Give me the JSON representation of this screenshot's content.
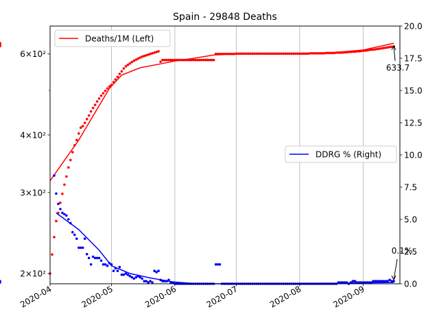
{
  "chart_data": {
    "type": "line",
    "title": "Spain - 29848 Deaths",
    "x_start": "2020-04-01",
    "x_end": "2020-09-19",
    "x_ticks": [
      "2020-04",
      "2020-05",
      "2020-06",
      "2020-07",
      "2020-08",
      "2020-09"
    ],
    "x_tick_dates": [
      "2020-04-01",
      "2020-05-01",
      "2020-06-01",
      "2020-07-01",
      "2020-08-01",
      "2020-09-01"
    ],
    "grid": "vertical",
    "left_axis": {
      "scale": "log",
      "ylim": [
        190,
        690
      ],
      "ticks": [
        200,
        300,
        400,
        600
      ],
      "tick_labels": [
        "2×10²",
        "3×10²",
        "4×10²",
        "6×10²"
      ]
    },
    "right_axis": {
      "scale": "linear",
      "ylim": [
        0,
        20
      ],
      "ticks": [
        0,
        2.5,
        5,
        7.5,
        10,
        12.5,
        15,
        17.5,
        20
      ],
      "tick_labels": [
        "0.0",
        "2.5",
        "5.0",
        "7.5",
        "10.0",
        "12.5",
        "15.0",
        "17.5",
        "20.0"
      ]
    },
    "series": [
      {
        "name": "Deaths/1M (Left)",
        "axis": "left",
        "color": "#ff0000",
        "legend_position": "upper-left",
        "x": [
          "2020-04-01",
          "2020-04-02",
          "2020-04-03",
          "2020-04-04",
          "2020-04-05",
          "2020-04-06",
          "2020-04-07",
          "2020-04-08",
          "2020-04-09",
          "2020-04-10",
          "2020-04-11",
          "2020-04-12",
          "2020-04-13",
          "2020-04-14",
          "2020-04-15",
          "2020-04-16",
          "2020-04-17",
          "2020-04-18",
          "2020-04-19",
          "2020-04-20",
          "2020-04-21",
          "2020-04-22",
          "2020-04-23",
          "2020-04-24",
          "2020-04-25",
          "2020-04-26",
          "2020-04-27",
          "2020-04-28",
          "2020-04-29",
          "2020-04-30",
          "2020-05-01",
          "2020-05-02",
          "2020-05-03",
          "2020-05-04",
          "2020-05-05",
          "2020-05-06",
          "2020-05-07",
          "2020-05-08",
          "2020-05-09",
          "2020-05-10",
          "2020-05-11",
          "2020-05-12",
          "2020-05-13",
          "2020-05-14",
          "2020-05-15",
          "2020-05-16",
          "2020-05-17",
          "2020-05-18",
          "2020-05-19",
          "2020-05-20",
          "2020-05-21",
          "2020-05-22",
          "2020-05-23",
          "2020-05-24",
          "2020-05-25",
          "2020-05-26",
          "2020-05-27",
          "2020-05-28",
          "2020-05-29",
          "2020-05-30",
          "2020-05-31",
          "2020-06-01",
          "2020-06-02",
          "2020-06-03",
          "2020-06-04",
          "2020-06-05",
          "2020-06-06",
          "2020-06-07",
          "2020-06-08",
          "2020-06-09",
          "2020-06-10",
          "2020-06-11",
          "2020-06-12",
          "2020-06-13",
          "2020-06-14",
          "2020-06-15",
          "2020-06-16",
          "2020-06-17",
          "2020-06-18",
          "2020-06-19",
          "2020-06-20",
          "2020-06-21",
          "2020-06-22",
          "2020-06-23",
          "2020-06-24",
          "2020-06-25",
          "2020-06-26",
          "2020-06-27",
          "2020-06-28",
          "2020-06-29",
          "2020-06-30",
          "2020-07-01",
          "2020-07-02",
          "2020-07-03",
          "2020-07-04",
          "2020-07-05",
          "2020-07-06",
          "2020-07-07",
          "2020-07-08",
          "2020-07-09",
          "2020-07-10",
          "2020-07-11",
          "2020-07-12",
          "2020-07-13",
          "2020-07-14",
          "2020-07-15",
          "2020-07-16",
          "2020-07-17",
          "2020-07-18",
          "2020-07-19",
          "2020-07-20",
          "2020-07-21",
          "2020-07-22",
          "2020-07-23",
          "2020-07-24",
          "2020-07-25",
          "2020-07-26",
          "2020-07-27",
          "2020-07-28",
          "2020-07-29",
          "2020-07-30",
          "2020-07-31",
          "2020-08-01",
          "2020-08-02",
          "2020-08-03",
          "2020-08-04",
          "2020-08-05",
          "2020-08-06",
          "2020-08-07",
          "2020-08-08",
          "2020-08-09",
          "2020-08-10",
          "2020-08-11",
          "2020-08-12",
          "2020-08-13",
          "2020-08-14",
          "2020-08-15",
          "2020-08-16",
          "2020-08-17",
          "2020-08-18",
          "2020-08-19",
          "2020-08-20",
          "2020-08-21",
          "2020-08-22",
          "2020-08-23",
          "2020-08-24",
          "2020-08-25",
          "2020-08-26",
          "2020-08-27",
          "2020-08-28",
          "2020-08-29",
          "2020-08-30",
          "2020-08-31",
          "2020-09-01",
          "2020-09-02",
          "2020-09-03",
          "2020-09-04",
          "2020-09-05",
          "2020-09-06",
          "2020-09-07",
          "2020-09-08",
          "2020-09-09",
          "2020-09-10",
          "2020-09-11",
          "2020-09-12",
          "2020-09-13",
          "2020-09-14",
          "2020-09-15",
          "2020-09-16"
        ],
        "points": [
          200,
          220,
          240,
          260,
          271,
          285,
          298,
          312,
          325,
          340,
          353,
          367,
          380,
          390,
          403,
          415,
          418,
          425,
          433,
          441,
          450,
          458,
          465,
          473,
          480,
          487,
          493,
          499,
          505,
          510,
          514,
          521,
          528,
          535,
          543,
          550,
          558,
          564,
          568,
          572,
          576,
          580,
          583,
          586,
          589,
          592,
          594,
          596,
          598,
          600,
          602,
          604,
          606,
          608,
          577,
          582,
          582,
          582,
          582,
          582,
          582,
          582,
          582,
          582,
          582,
          582,
          582,
          582,
          582,
          582,
          582,
          582,
          582,
          582,
          582,
          582,
          582,
          582,
          582,
          582,
          582,
          600,
          600,
          600,
          600,
          600,
          600,
          600,
          600,
          600,
          600,
          601,
          601,
          601,
          601,
          601,
          601,
          601,
          601,
          601,
          601,
          601,
          601,
          601,
          601,
          601,
          601,
          601,
          601,
          601,
          601,
          601,
          601,
          601,
          601,
          601,
          601,
          601,
          601,
          601,
          601,
          601,
          601,
          601,
          601,
          601,
          601,
          602,
          602,
          602,
          602,
          602,
          602,
          602,
          602,
          603,
          603,
          603,
          603,
          603,
          604,
          604,
          604,
          604,
          605,
          605,
          606,
          606,
          607,
          607,
          608,
          608,
          609,
          610,
          610,
          611,
          612,
          613,
          613,
          614,
          615,
          616,
          617,
          618,
          619,
          620,
          621,
          622,
          623,
          624,
          625,
          627,
          629,
          631,
          633.7
        ],
        "trend": [
          {
            "x": "2020-04-01",
            "y": 318
          },
          {
            "x": "2020-04-15",
            "y": 390
          },
          {
            "x": "2020-04-30",
            "y": 505
          },
          {
            "x": "2020-05-06",
            "y": 540
          },
          {
            "x": "2020-05-15",
            "y": 560
          },
          {
            "x": "2020-05-25",
            "y": 571
          },
          {
            "x": "2020-05-31",
            "y": 578
          },
          {
            "x": "2020-06-10",
            "y": 587
          },
          {
            "x": "2020-06-20",
            "y": 597
          },
          {
            "x": "2020-06-30",
            "y": 600
          },
          {
            "x": "2020-07-31",
            "y": 601
          },
          {
            "x": "2020-08-15",
            "y": 603
          },
          {
            "x": "2020-09-01",
            "y": 612
          },
          {
            "x": "2020-09-16",
            "y": 633
          }
        ],
        "annotation": {
          "text": "633.7",
          "x": "2020-09-16",
          "y": 633.7
        }
      },
      {
        "name": "DDRG % (Right)",
        "axis": "right",
        "color": "#0000ff",
        "legend_position": "center-right",
        "x": [
          "2020-04-03",
          "2020-04-04",
          "2020-04-05",
          "2020-04-06",
          "2020-04-07",
          "2020-04-08",
          "2020-04-09",
          "2020-04-10",
          "2020-04-11",
          "2020-04-12",
          "2020-04-13",
          "2020-04-14",
          "2020-04-15",
          "2020-04-16",
          "2020-04-17",
          "2020-04-18",
          "2020-04-19",
          "2020-04-20",
          "2020-04-21",
          "2020-04-22",
          "2020-04-23",
          "2020-04-24",
          "2020-04-25",
          "2020-04-26",
          "2020-04-27",
          "2020-04-28",
          "2020-04-29",
          "2020-04-30",
          "2020-05-01",
          "2020-05-02",
          "2020-05-03",
          "2020-05-04",
          "2020-05-05",
          "2020-05-06",
          "2020-05-07",
          "2020-05-08",
          "2020-05-09",
          "2020-05-10",
          "2020-05-11",
          "2020-05-12",
          "2020-05-13",
          "2020-05-14",
          "2020-05-15",
          "2020-05-16",
          "2020-05-17",
          "2020-05-18",
          "2020-05-19",
          "2020-05-20",
          "2020-05-21",
          "2020-05-22",
          "2020-05-23",
          "2020-05-24",
          "2020-05-25",
          "2020-05-26",
          "2020-05-27",
          "2020-05-28",
          "2020-05-29",
          "2020-05-30",
          "2020-05-31",
          "2020-06-01",
          "2020-06-02",
          "2020-06-03",
          "2020-06-04",
          "2020-06-05",
          "2020-06-06",
          "2020-06-07",
          "2020-06-08",
          "2020-06-09",
          "2020-06-10",
          "2020-06-11",
          "2020-06-12",
          "2020-06-13",
          "2020-06-14",
          "2020-06-15",
          "2020-06-16",
          "2020-06-17",
          "2020-06-18",
          "2020-06-19",
          "2020-06-20",
          "2020-06-21",
          "2020-06-22",
          "2020-06-23",
          "2020-06-24",
          "2020-06-25",
          "2020-06-26",
          "2020-06-27",
          "2020-06-28",
          "2020-06-29",
          "2020-06-30",
          "2020-07-01",
          "2020-07-02",
          "2020-07-03",
          "2020-07-04",
          "2020-07-05",
          "2020-07-06",
          "2020-07-07",
          "2020-07-08",
          "2020-07-09",
          "2020-07-10",
          "2020-07-11",
          "2020-07-12",
          "2020-07-13",
          "2020-07-14",
          "2020-07-15",
          "2020-07-16",
          "2020-07-17",
          "2020-07-18",
          "2020-07-19",
          "2020-07-20",
          "2020-07-21",
          "2020-07-22",
          "2020-07-23",
          "2020-07-24",
          "2020-07-25",
          "2020-07-26",
          "2020-07-27",
          "2020-07-28",
          "2020-07-29",
          "2020-07-30",
          "2020-07-31",
          "2020-08-01",
          "2020-08-02",
          "2020-08-03",
          "2020-08-04",
          "2020-08-05",
          "2020-08-06",
          "2020-08-07",
          "2020-08-08",
          "2020-08-09",
          "2020-08-10",
          "2020-08-11",
          "2020-08-12",
          "2020-08-13",
          "2020-08-14",
          "2020-08-15",
          "2020-08-16",
          "2020-08-17",
          "2020-08-18",
          "2020-08-19",
          "2020-08-20",
          "2020-08-21",
          "2020-08-22",
          "2020-08-23",
          "2020-08-24",
          "2020-08-25",
          "2020-08-26",
          "2020-08-27",
          "2020-08-28",
          "2020-08-29",
          "2020-08-30",
          "2020-08-31",
          "2020-09-01",
          "2020-09-02",
          "2020-09-03",
          "2020-09-04",
          "2020-09-05",
          "2020-09-06",
          "2020-09-07",
          "2020-09-08",
          "2020-09-09",
          "2020-09-10",
          "2020-09-11",
          "2020-09-12",
          "2020-09-13",
          "2020-09-14",
          "2020-09-15",
          "2020-09-16"
        ],
        "points": [
          8.4,
          7.0,
          6.2,
          5.8,
          5.5,
          5.4,
          5.3,
          5.0,
          4.7,
          4.0,
          3.8,
          3.5,
          2.8,
          2.8,
          2.8,
          3.5,
          2.3,
          2.0,
          1.5,
          2.1,
          2.0,
          2.0,
          2.0,
          1.8,
          1.5,
          1.5,
          1.4,
          1.6,
          1.5,
          1.0,
          1.2,
          1.0,
          1.3,
          0.7,
          0.7,
          0.8,
          0.7,
          0.6,
          0.5,
          0.4,
          0.5,
          0.6,
          0.5,
          0.4,
          0.2,
          0.2,
          0.1,
          0.2,
          0.1,
          1.0,
          0.9,
          1.0,
          0.3,
          0.2,
          0.2,
          0.2,
          0.3,
          0.1,
          0.1,
          0.0,
          0.0,
          0.0,
          0.0,
          0.0,
          0.0,
          0.0,
          0.0,
          0.0,
          0.0,
          0.0,
          0.0,
          0.0,
          0.0,
          0.0,
          0.0,
          0.0,
          0.0,
          0.0,
          0.0,
          1.5,
          1.5,
          1.5,
          0.0,
          0.0,
          0.0,
          0.0,
          0.0,
          0.0,
          0.0,
          0.0,
          0.0,
          0.0,
          0.0,
          0.0,
          0.0,
          0.0,
          0.0,
          0.0,
          0.0,
          0.0,
          0.0,
          0.0,
          0.0,
          0.0,
          0.0,
          0.0,
          0.0,
          0.0,
          0.0,
          0.0,
          0.0,
          0.0,
          0.0,
          0.0,
          0.0,
          0.0,
          0.0,
          0.0,
          0.0,
          0.0,
          0.0,
          0.0,
          0.0,
          0.0,
          0.0,
          0.0,
          0.0,
          0.0,
          0.0,
          0.0,
          0.0,
          0.0,
          0.0,
          0.0,
          0.0,
          0.0,
          0.0,
          0.0,
          0.0,
          0.1,
          0.1,
          0.1,
          0.1,
          0.1,
          0.0,
          0.1,
          0.2,
          0.2,
          0.1,
          0.1,
          0.1,
          0.1,
          0.1,
          0.1,
          0.1,
          0.1,
          0.2,
          0.2,
          0.2,
          0.2,
          0.2,
          0.2,
          0.2,
          0.2,
          0.3,
          0.2,
          0.2,
          0.2,
          0.1
        ],
        "trend": [
          {
            "x": "2020-04-04",
            "y": 5.5
          },
          {
            "x": "2020-04-15",
            "y": 4.2
          },
          {
            "x": "2020-04-25",
            "y": 2.6
          },
          {
            "x": "2020-05-01",
            "y": 1.4
          },
          {
            "x": "2020-05-10",
            "y": 0.8
          },
          {
            "x": "2020-05-20",
            "y": 0.45
          },
          {
            "x": "2020-05-31",
            "y": 0.15
          },
          {
            "x": "2020-06-10",
            "y": 0.02
          },
          {
            "x": "2020-06-20",
            "y": 0.0
          },
          {
            "x": "2020-08-10",
            "y": 0.02
          },
          {
            "x": "2020-09-16",
            "y": 0.1
          }
        ],
        "annotation": {
          "text": "0.1%",
          "x": "2020-09-16",
          "y": 0.1
        }
      }
    ]
  }
}
